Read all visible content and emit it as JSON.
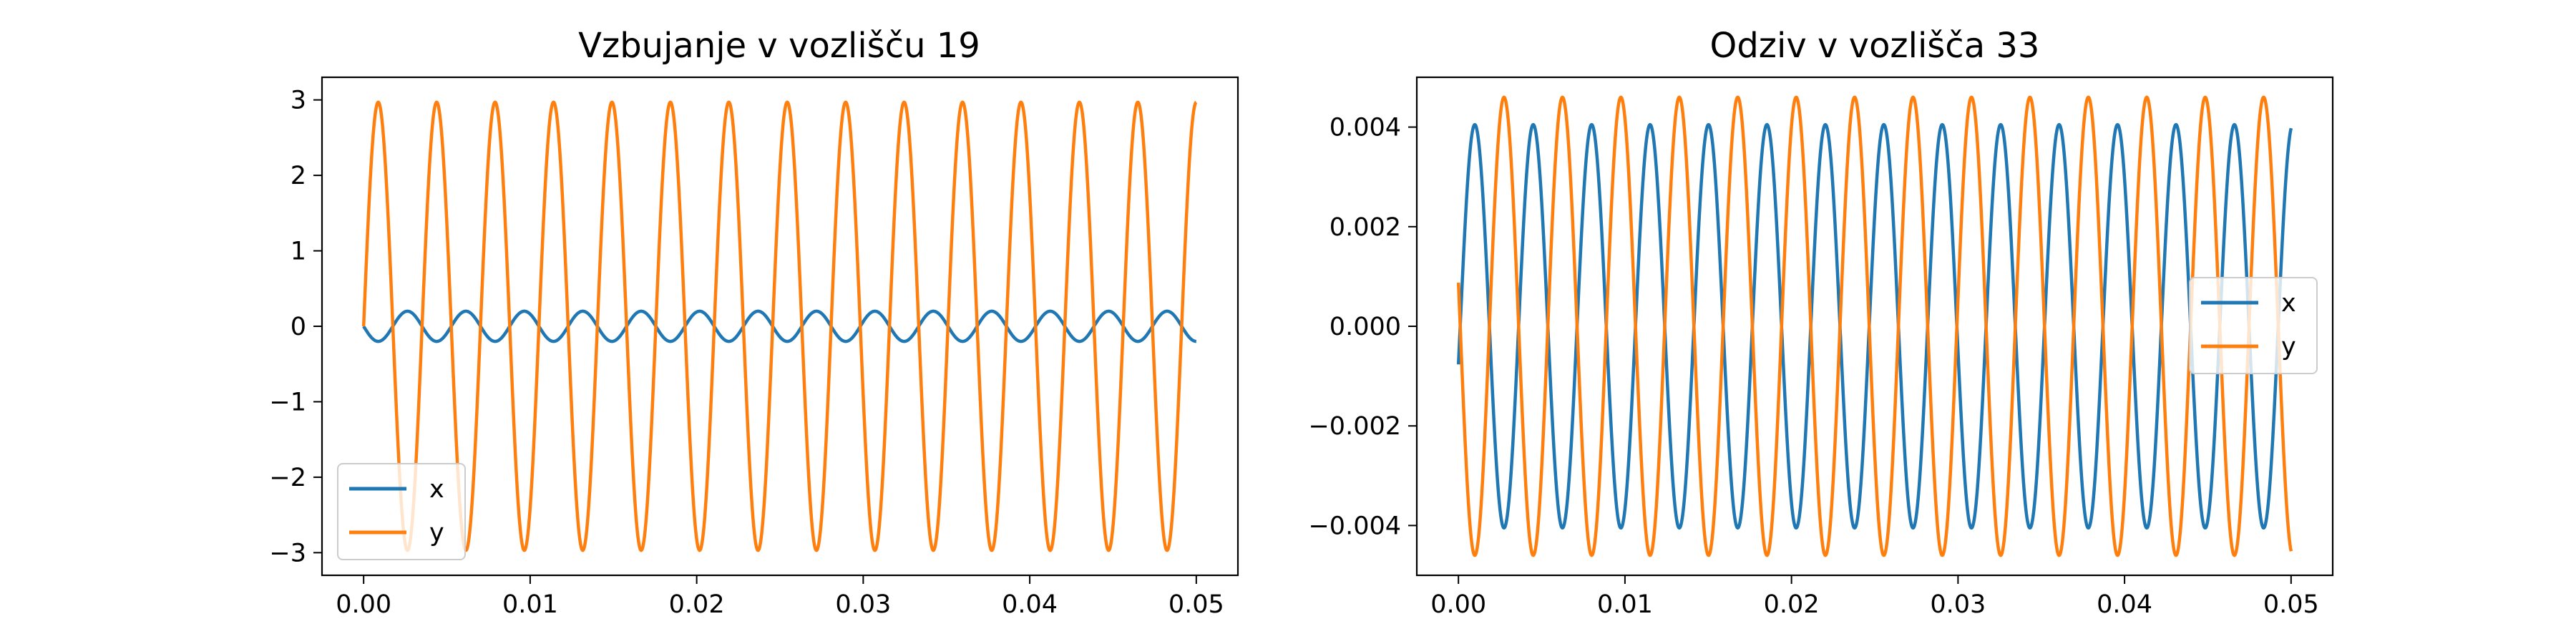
{
  "chart_data": [
    {
      "type": "line",
      "title": "Vzbujanje v vozlišču 19",
      "xlabel": "",
      "ylabel": "",
      "xlim": [
        -0.0025,
        0.0525
      ],
      "ylim": [
        -3.3,
        3.3
      ],
      "xticks": [
        0.0,
        0.01,
        0.02,
        0.03,
        0.04,
        0.05
      ],
      "xtick_labels": [
        "0.00",
        "0.01",
        "0.02",
        "0.03",
        "0.04",
        "0.05"
      ],
      "yticks": [
        -3,
        -2,
        -1,
        0,
        1,
        2,
        3
      ],
      "ytick_labels": [
        "−3",
        "−2",
        "−1",
        "0",
        "1",
        "2",
        "3"
      ],
      "legend": "lower left",
      "grid": false,
      "series": [
        {
          "name": "x",
          "color": "#1f77b4",
          "amplitude": 0.2,
          "frequency_hz": 285,
          "phase": 3.14159,
          "x_start": 0.0,
          "x_end": 0.05
        },
        {
          "name": "y",
          "color": "#ff7f0e",
          "amplitude": 2.97,
          "frequency_hz": 285,
          "phase": 0.0,
          "x_start": 0.0,
          "x_end": 0.05
        }
      ]
    },
    {
      "type": "line",
      "title": "Odziv v vozlišča 33",
      "xlabel": "",
      "ylabel": "",
      "xlim": [
        -0.0025,
        0.0525
      ],
      "ylim": [
        -0.005,
        0.005
      ],
      "xticks": [
        0.0,
        0.01,
        0.02,
        0.03,
        0.04,
        0.05
      ],
      "xtick_labels": [
        "0.00",
        "0.01",
        "0.02",
        "0.03",
        "0.04",
        "0.05"
      ],
      "yticks": [
        -0.004,
        -0.002,
        0.0,
        0.002,
        0.004
      ],
      "ytick_labels": [
        "−0.004",
        "−0.002",
        "0.000",
        "0.002",
        "0.004"
      ],
      "legend": "center right",
      "grid": false,
      "series": [
        {
          "name": "x",
          "color": "#1f77b4",
          "amplitude": 0.00405,
          "frequency_hz": 285,
          "phase": -0.19,
          "x_start": 0.0,
          "x_end": 0.05
        },
        {
          "name": "y",
          "color": "#ff7f0e",
          "amplitude": 0.0046,
          "frequency_hz": 285,
          "phase": 2.95,
          "x_start": 0.0,
          "x_end": 0.05
        }
      ]
    }
  ]
}
